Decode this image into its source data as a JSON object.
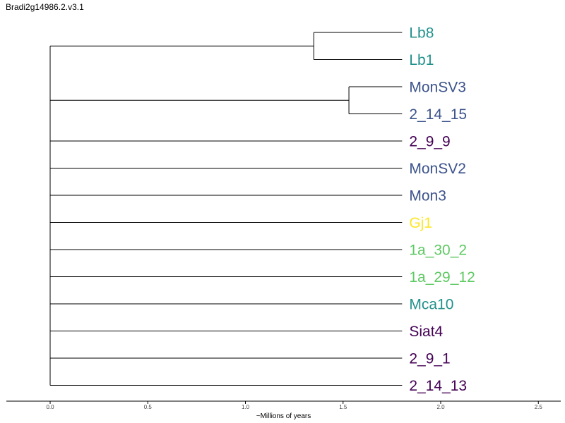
{
  "title": "Bradi2g14986.2.v3.1",
  "colors": {
    "purple": "#440154",
    "blue": "#3b528b",
    "teal": "#21918c",
    "green": "#5ec962",
    "yellow": "#fde725",
    "branch": "#000000"
  },
  "chart_data": {
    "type": "dendrogram",
    "xlabel": "~Millions of years",
    "xlim": [
      -0.22,
      2.63
    ],
    "xticks": [
      "0.0",
      "0.5",
      "1.0",
      "1.5",
      "2.0",
      "2.5"
    ],
    "xtick_values": [
      0,
      0.5,
      1.0,
      1.5,
      2.0,
      2.5
    ],
    "tip_x": 1.9,
    "root_x": 0.0,
    "tips": [
      {
        "label": "Lb8",
        "color": "#21918c"
      },
      {
        "label": "Lb1",
        "color": "#21918c"
      },
      {
        "label": "MonSV3",
        "color": "#3b528b"
      },
      {
        "label": "2_14_15",
        "color": "#3b528b"
      },
      {
        "label": "2_9_9",
        "color": "#440154"
      },
      {
        "label": "MonSV2",
        "color": "#3b528b"
      },
      {
        "label": "Mon3",
        "color": "#3b528b"
      },
      {
        "label": "Gj1",
        "color": "#fde725"
      },
      {
        "label": "1a_30_2",
        "color": "#5ec962"
      },
      {
        "label": "1a_29_12",
        "color": "#5ec962"
      },
      {
        "label": "Mca10",
        "color": "#21918c"
      },
      {
        "label": "Siat4",
        "color": "#440154"
      },
      {
        "label": "2_9_1",
        "color": "#440154"
      },
      {
        "label": "2_14_13",
        "color": "#440154"
      }
    ],
    "clades": [
      {
        "members": [
          0,
          1
        ],
        "node_x": 1.35
      },
      {
        "members": [
          2,
          3
        ],
        "node_x": 1.53
      }
    ]
  }
}
